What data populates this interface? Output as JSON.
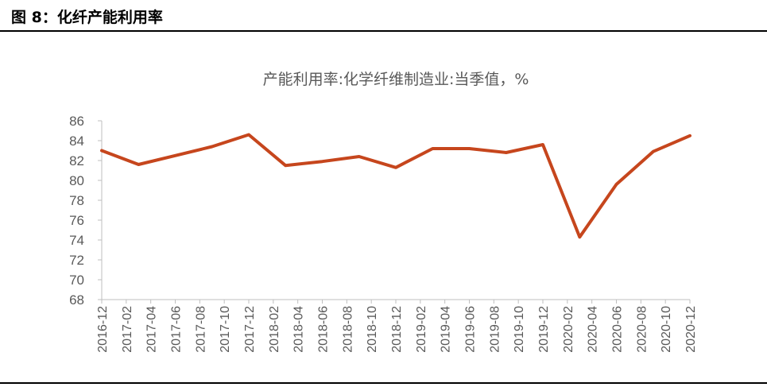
{
  "figure": {
    "label": "图 8：化纤产能利用率"
  },
  "footer": {
    "text": ""
  },
  "colors": {
    "line": "#c6461d",
    "text": "#595959",
    "axis": "#bfbfbf",
    "header_rule": "#000000"
  },
  "chart_data": {
    "type": "line",
    "title": "产能利用率:化学纤维制造业:当季值，%",
    "xlabel": "",
    "ylabel": "",
    "ylim": [
      68,
      86
    ],
    "yticks": [
      68,
      70,
      72,
      74,
      76,
      78,
      80,
      82,
      84,
      86
    ],
    "grid": false,
    "categories": [
      "2016-12",
      "2017-02",
      "2017-04",
      "2017-06",
      "2017-08",
      "2017-10",
      "2017-12",
      "2018-02",
      "2018-04",
      "2018-06",
      "2018-08",
      "2018-10",
      "2018-12",
      "2019-02",
      "2019-04",
      "2019-06",
      "2019-08",
      "2019-10",
      "2019-12",
      "2020-02",
      "2020-04",
      "2020-06",
      "2020-08",
      "2020-10",
      "2020-12"
    ],
    "series": [
      {
        "points": [
          {
            "x": "2016-12",
            "y": 83.0
          },
          {
            "x": "2017-03",
            "y": 81.6
          },
          {
            "x": "2017-06",
            "y": 82.5
          },
          {
            "x": "2017-09",
            "y": 83.4
          },
          {
            "x": "2017-12",
            "y": 84.6
          },
          {
            "x": "2018-03",
            "y": 81.5
          },
          {
            "x": "2018-06",
            "y": 81.9
          },
          {
            "x": "2018-09",
            "y": 82.4
          },
          {
            "x": "2018-12",
            "y": 81.3
          },
          {
            "x": "2019-03",
            "y": 83.2
          },
          {
            "x": "2019-06",
            "y": 83.2
          },
          {
            "x": "2019-09",
            "y": 82.8
          },
          {
            "x": "2019-12",
            "y": 83.6
          },
          {
            "x": "2020-03",
            "y": 74.3
          },
          {
            "x": "2020-06",
            "y": 79.6
          },
          {
            "x": "2020-09",
            "y": 82.9
          },
          {
            "x": "2020-12",
            "y": 84.5
          }
        ]
      }
    ]
  }
}
